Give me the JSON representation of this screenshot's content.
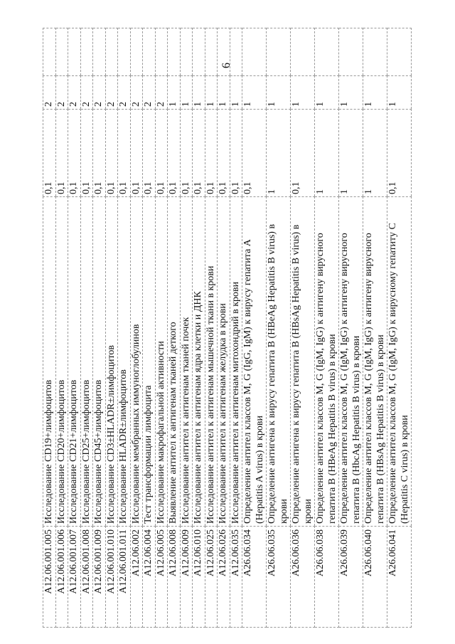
{
  "page_number": "6",
  "rows": [
    {
      "code": "A12.06.001.005",
      "name": "Исследование CD19+лимфоцитов",
      "v1": "0,1",
      "v2": "2"
    },
    {
      "code": "A12.06.001.006",
      "name": "Исследование CD20+лимфоцитов",
      "v1": "0,1",
      "v2": "2"
    },
    {
      "code": "A12.06.001.007",
      "name": "Исследование CD21+лимфоцитов",
      "v1": "0,1",
      "v2": "2"
    },
    {
      "code": "A12.06.001.008",
      "name": "Исследование CD25+лимфоцитов",
      "v1": "0,1",
      "v2": "2"
    },
    {
      "code": "A12.06.001.009",
      "name": "Исследование CD45+лимфоцитов",
      "v1": "0,1",
      "v2": "2"
    },
    {
      "code": "A12.06.001.010",
      "name": "Исследование CD3±HLADR±лимфоцитов",
      "v1": "0,1",
      "v2": "2"
    },
    {
      "code": "A12.06.001.011",
      "name": "Исследование HLADR±лимфоцитов",
      "v1": "0,1",
      "v2": "2"
    },
    {
      "code": "A12.06.002",
      "name": "Исследование мембранных иммуноглобулинов",
      "v1": "0,1",
      "v2": "2"
    },
    {
      "code": "A12.06.004",
      "name": "Тест трансформации лимфоцита",
      "v1": "0,1",
      "v2": "2"
    },
    {
      "code": "A12.06.005",
      "name": "Исследование макрофагальной активности",
      "v1": "0,1",
      "v2": "2"
    },
    {
      "code": "A12.06.008",
      "name": "Выявление антител к антигенам тканей деткого",
      "v1": "0,1",
      "v2": "1"
    },
    {
      "code": "A12.06.009",
      "name": "Исследование антител к антигенам тканей почек",
      "v1": "0,1",
      "v2": "1"
    },
    {
      "code": "A12.06.010",
      "name": "Исследование антител к антигенам ядра клетки и ДНК",
      "v1": "0,1",
      "v2": "1"
    },
    {
      "code": "A12.06.025",
      "name": "Исследование антител к антигенам мышечной ткани в крови",
      "v1": "0,1",
      "v2": "1"
    },
    {
      "code": "A12.06.026",
      "name": "Исследование антител к антигенам желудка в крови",
      "v1": "0,1",
      "v2": "1"
    },
    {
      "code": "A12.06.035",
      "name": "Исследование антител к антигенам митохондрий в крови",
      "v1": "0,1",
      "v2": "1"
    },
    {
      "code": "A26.06.034",
      "name": "Определение антител классов M, G (IgG, IgM) к вирусу гепатита A (Hepatitis A virus) в крови",
      "v1": "0,1",
      "v2": "1"
    },
    {
      "code": "A26.06.035",
      "name": "Определение антигена к вирусу гепатита B (HBeAg Hepatitis B virus) в крови",
      "v1": "1",
      "v2": "1"
    },
    {
      "code": "A26.06.036",
      "name": "Определение антигена к вирусу гепатита B (HBsAg Hepatitis B virus) в крови",
      "v1": "0,1",
      "v2": "1"
    },
    {
      "code": "A26.06.038",
      "name": "Определение антител классов M, G (IgM, IgG) к антигену вирусного гепатита B (HBeAg Hepatitis B virus) в крови",
      "v1": "1",
      "v2": "1"
    },
    {
      "code": "A26.06.039",
      "name": "Определение антител классов M, G (IgM, IgG) к антигену вирусного гепатита B (HbcAg Hepatitis B virus) в крови",
      "v1": "1",
      "v2": "1"
    },
    {
      "code": "A26.06.040",
      "name": "Определение антител классов M, G (IgM, IgG) к антигену вирусного гепатита B (HBsAg Hepatitis B virus) в крови",
      "v1": "1",
      "v2": "1"
    },
    {
      "code": "A26.06.041",
      "name": "Определение антител классов M, G (IgM, IgG) к вирусному гепатиту C (Hepatitis C virus) в крови",
      "v1": "0,1",
      "v2": "1"
    }
  ]
}
